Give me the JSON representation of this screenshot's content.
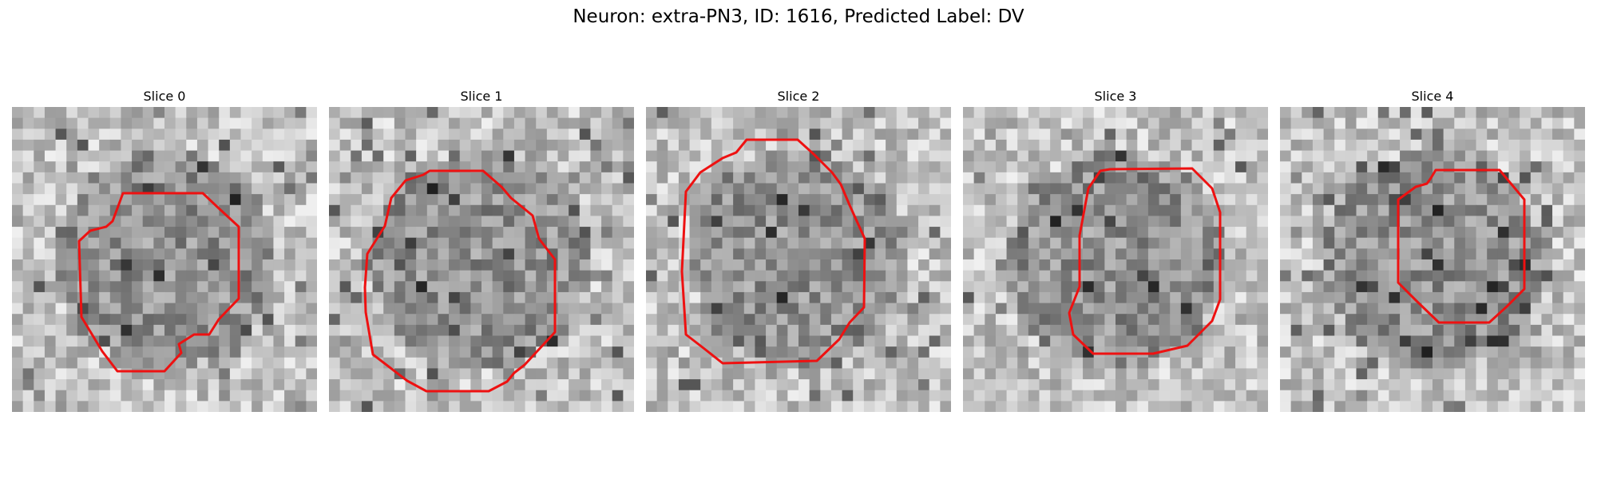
{
  "figure": {
    "title": "Neuron: extra-PN3, ID: 1616, Predicted Label: DV",
    "contour_color": "#ee1111"
  },
  "panels": [
    {
      "title": "Slice 0"
    },
    {
      "title": "Slice 1"
    },
    {
      "title": "Slice 2"
    },
    {
      "title": "Slice 3"
    },
    {
      "title": "Slice 4"
    }
  ]
}
